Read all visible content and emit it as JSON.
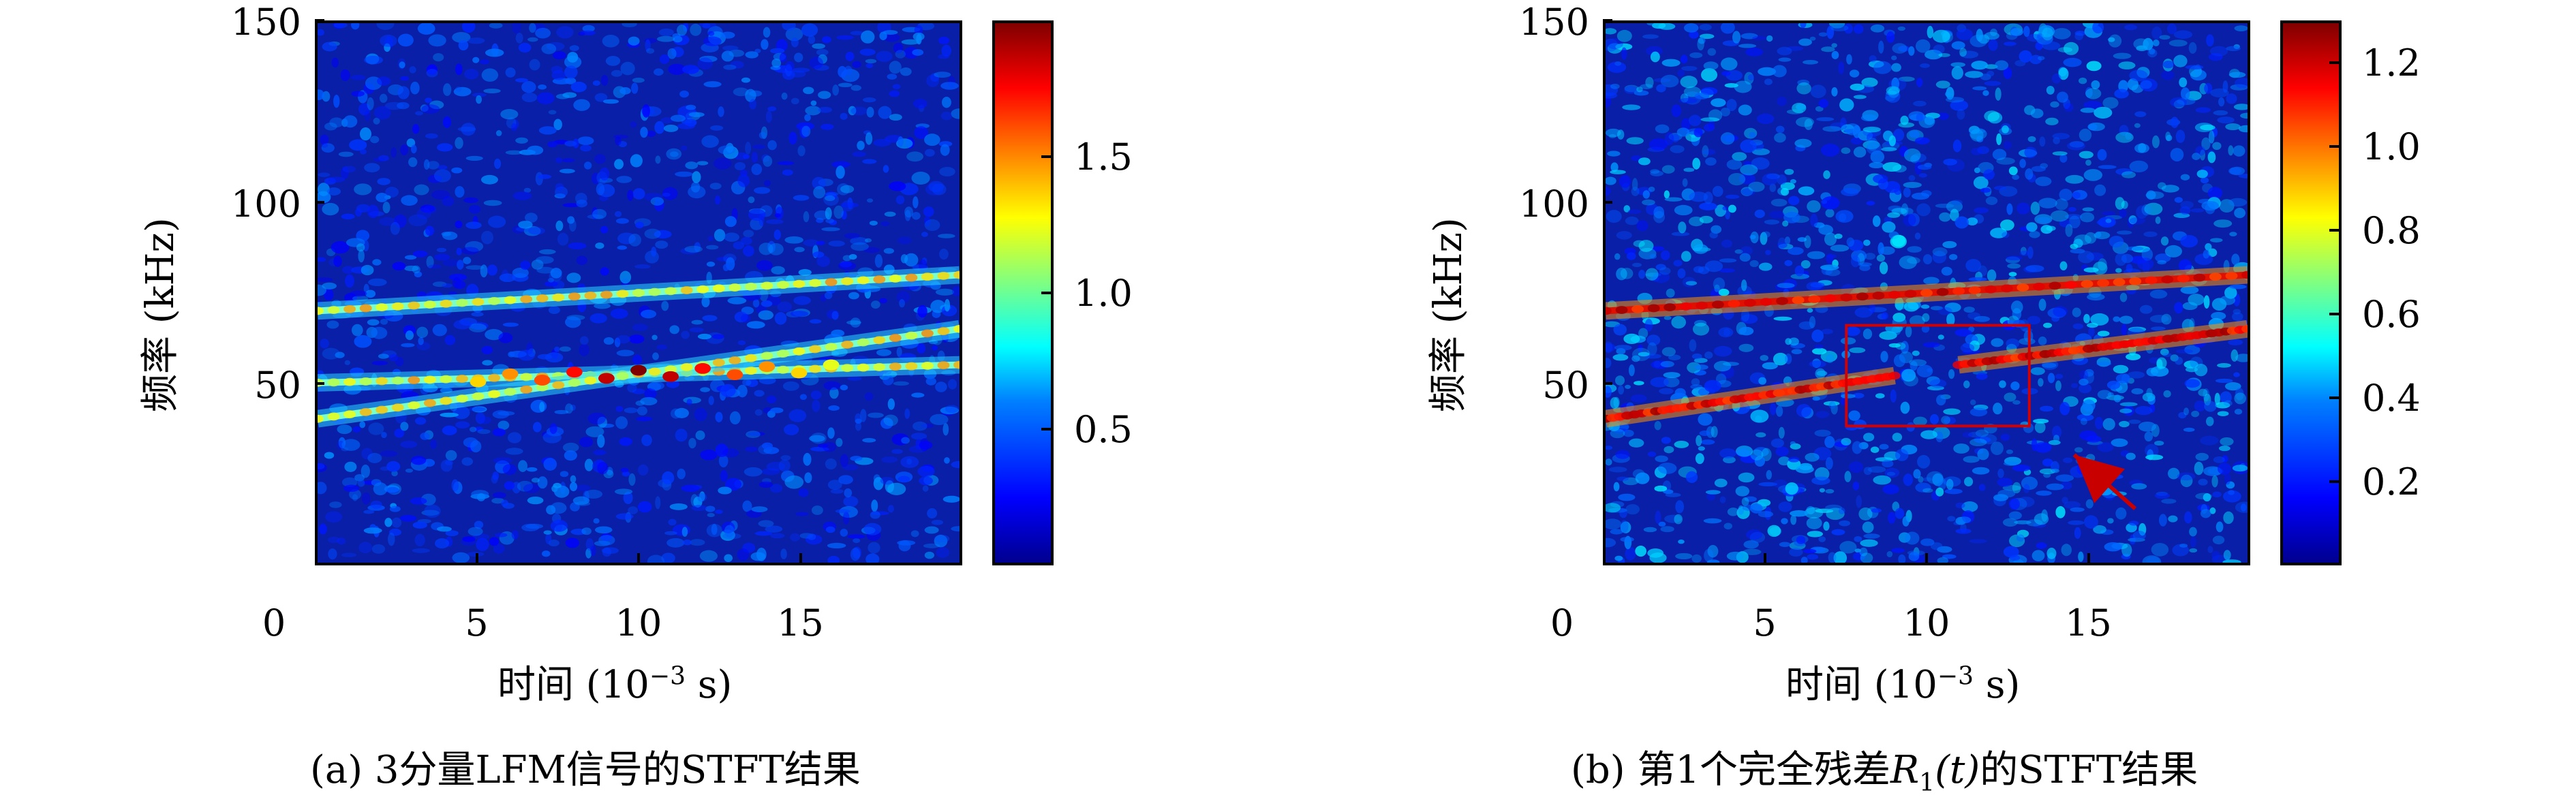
{
  "chart_data": [
    {
      "type": "heatmap",
      "subtype": "spectrogram",
      "caption": "(a) 3分量LFM信号的STFT结果",
      "xlabel_prefix": "时间 (10",
      "xlabel_exp": "−3",
      "xlabel_suffix": " s)",
      "ylabel": "频率 (kHz)",
      "xlim": [
        0,
        20
      ],
      "ylim": [
        0,
        150
      ],
      "xticks": [
        0,
        5,
        10,
        15
      ],
      "yticks": [
        50,
        100,
        150
      ],
      "colorbar_ticks": [
        "0.5",
        "1.0",
        "1.5"
      ],
      "colorbar_range": [
        0,
        2.0
      ],
      "colormap": "jet",
      "series": [
        {
          "x": [
            0.0,
            20.0
          ],
          "y": [
            70,
            80
          ]
        },
        {
          "x": [
            0.0,
            20.0
          ],
          "y": [
            50,
            55
          ]
        },
        {
          "x": [
            0.0,
            20.0
          ],
          "y": [
            40,
            65
          ]
        }
      ]
    },
    {
      "type": "heatmap",
      "subtype": "spectrogram",
      "caption_prefix": "(b) 第1个完全残差",
      "caption_var": "R",
      "caption_sub": "1",
      "caption_arg": "(t)",
      "caption_suffix": "的STFT结果",
      "xlabel_prefix": "时间 (10",
      "xlabel_exp": "−3",
      "xlabel_suffix": " s)",
      "ylabel": "频率 (kHz)",
      "xlim": [
        0,
        20
      ],
      "ylim": [
        0,
        150
      ],
      "xticks": [
        0,
        5,
        10,
        15
      ],
      "yticks": [
        50,
        100,
        150
      ],
      "colorbar_ticks": [
        "0.2",
        "0.4",
        "0.6",
        "0.8",
        "1.0",
        "1.2"
      ],
      "colorbar_range": [
        0,
        1.3
      ],
      "colormap": "jet",
      "series": [
        {
          "x": [
            0.0,
            20.0
          ],
          "y": [
            70,
            80
          ]
        },
        {
          "x": [
            0.0,
            9.0
          ],
          "y": [
            40,
            52
          ]
        },
        {
          "x": [
            11.0,
            20.0
          ],
          "y": [
            55,
            65
          ]
        }
      ],
      "annotations": {
        "box": {
          "x": [
            7.5,
            13.2
          ],
          "y": [
            38,
            66
          ],
          "color": "#d40000"
        },
        "arrow": {
          "from": [
            16.5,
            15
          ],
          "to": [
            14.6,
            30
          ],
          "color": "#c80000"
        }
      },
      "colors": {
        "annotation": "#d40000"
      }
    }
  ]
}
